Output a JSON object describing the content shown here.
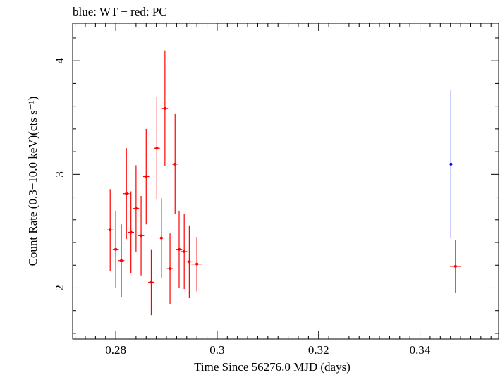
{
  "chart_data": {
    "type": "scatter",
    "title": "blue: WT − red: PC",
    "xlabel": "Time Since 56276.0 MJD (days)",
    "ylabel": "Count Rate (0.3−10.0 keV)(cts s⁻¹)",
    "xlim": [
      0.2715,
      0.3555
    ],
    "ylim": [
      1.55,
      4.33
    ],
    "x_ticks": [
      0.28,
      0.3,
      0.32,
      0.34
    ],
    "x_tick_labels": [
      "0.28",
      "0.3",
      "0.32",
      "0.34"
    ],
    "y_ticks": [
      2,
      3,
      4
    ],
    "y_tick_labels": [
      "2",
      "3",
      "4"
    ],
    "grid": false,
    "series": [
      {
        "name": "WT",
        "color": "#0000ff",
        "points": [
          {
            "x": 0.3461,
            "xerr": 0.0002,
            "y": 3.09,
            "yerr_low": 0.65,
            "yerr_high": 0.65
          }
        ]
      },
      {
        "name": "PC",
        "color": "#ff0000",
        "points": [
          {
            "x": 0.2789,
            "xerr": 0.0006,
            "y": 2.51,
            "yerr_low": 0.36,
            "yerr_high": 0.36
          },
          {
            "x": 0.28,
            "xerr": 0.0006,
            "y": 2.34,
            "yerr_low": 0.34,
            "yerr_high": 0.34
          },
          {
            "x": 0.2811,
            "xerr": 0.0006,
            "y": 2.24,
            "yerr_low": 0.32,
            "yerr_high": 0.32
          },
          {
            "x": 0.2821,
            "xerr": 0.0006,
            "y": 2.83,
            "yerr_low": 0.4,
            "yerr_high": 0.4
          },
          {
            "x": 0.283,
            "xerr": 0.0006,
            "y": 2.49,
            "yerr_low": 0.36,
            "yerr_high": 0.36
          },
          {
            "x": 0.284,
            "xerr": 0.0006,
            "y": 2.7,
            "yerr_low": 0.38,
            "yerr_high": 0.38
          },
          {
            "x": 0.285,
            "xerr": 0.0006,
            "y": 2.46,
            "yerr_low": 0.35,
            "yerr_high": 0.35
          },
          {
            "x": 0.286,
            "xerr": 0.0006,
            "y": 2.98,
            "yerr_low": 0.42,
            "yerr_high": 0.42
          },
          {
            "x": 0.287,
            "xerr": 0.0006,
            "y": 2.05,
            "yerr_low": 0.29,
            "yerr_high": 0.29
          },
          {
            "x": 0.2881,
            "xerr": 0.0006,
            "y": 3.23,
            "yerr_low": 0.45,
            "yerr_high": 0.45
          },
          {
            "x": 0.289,
            "xerr": 0.0006,
            "y": 2.44,
            "yerr_low": 0.35,
            "yerr_high": 0.35
          },
          {
            "x": 0.2897,
            "xerr": 0.0006,
            "y": 3.58,
            "yerr_low": 0.51,
            "yerr_high": 0.51
          },
          {
            "x": 0.2907,
            "xerr": 0.0006,
            "y": 2.17,
            "yerr_low": 0.31,
            "yerr_high": 0.31
          },
          {
            "x": 0.2917,
            "xerr": 0.0006,
            "y": 3.09,
            "yerr_low": 0.44,
            "yerr_high": 0.44
          },
          {
            "x": 0.2925,
            "xerr": 0.0006,
            "y": 2.34,
            "yerr_low": 0.34,
            "yerr_high": 0.34
          },
          {
            "x": 0.2935,
            "xerr": 0.0006,
            "y": 2.32,
            "yerr_low": 0.33,
            "yerr_high": 0.33
          },
          {
            "x": 0.2945,
            "xerr": 0.0006,
            "y": 2.23,
            "yerr_low": 0.32,
            "yerr_high": 0.32
          },
          {
            "x": 0.296,
            "xerr": 0.0011,
            "y": 2.21,
            "yerr_low": 0.24,
            "yerr_high": 0.24
          },
          {
            "x": 0.347,
            "xerr": 0.0011,
            "y": 2.19,
            "yerr_low": 0.23,
            "yerr_high": 0.23
          }
        ]
      }
    ]
  }
}
